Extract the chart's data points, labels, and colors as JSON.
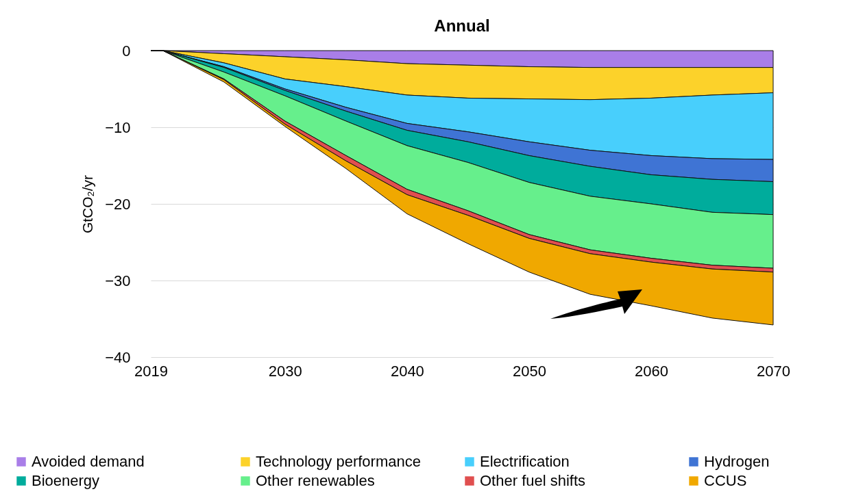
{
  "chart_data": {
    "type": "area",
    "title": "Annual",
    "ylabel": "GtCO₂/yr",
    "stacked": true,
    "x": [
      2019,
      2020,
      2025,
      2030,
      2035,
      2040,
      2045,
      2050,
      2055,
      2060,
      2065,
      2070
    ],
    "xlim": [
      2019,
      2070
    ],
    "xticks": [
      2019,
      2030,
      2040,
      2050,
      2060,
      2070
    ],
    "ylim": [
      -40,
      0
    ],
    "yticks": [
      -40,
      -30,
      -20,
      -10,
      0
    ],
    "grid": "y",
    "legend": "bottom",
    "series": [
      {
        "name": "Avoided demand",
        "color": "#a97ee8",
        "values": [
          0,
          0,
          -0.4,
          -0.8,
          -1.2,
          -1.7,
          -1.9,
          -2.1,
          -2.2,
          -2.2,
          -2.2,
          -2.2
        ]
      },
      {
        "name": "Technology performance",
        "color": "#fcd22a",
        "values": [
          0,
          0,
          -1.2,
          -2.9,
          -3.5,
          -4.1,
          -4.3,
          -4.2,
          -4.2,
          -4.0,
          -3.6,
          -3.3
        ]
      },
      {
        "name": "Electrification",
        "color": "#48cffc",
        "values": [
          0,
          0,
          -0.5,
          -1.3,
          -2.7,
          -3.7,
          -4.4,
          -5.6,
          -6.6,
          -7.5,
          -8.3,
          -8.7
        ]
      },
      {
        "name": "Hydrogen",
        "color": "#3f74d4",
        "values": [
          0,
          0,
          -0.1,
          -0.2,
          -0.5,
          -0.9,
          -1.3,
          -1.8,
          -2.1,
          -2.5,
          -2.7,
          -2.9
        ]
      },
      {
        "name": "Bioenergy",
        "color": "#00ac9c",
        "values": [
          0,
          0,
          -0.6,
          -0.7,
          -1.3,
          -2.0,
          -2.7,
          -3.5,
          -3.9,
          -3.8,
          -4.3,
          -4.3
        ]
      },
      {
        "name": "Other renewables",
        "color": "#66ef8c",
        "values": [
          0,
          0,
          -0.9,
          -3.3,
          -4.5,
          -5.7,
          -6.3,
          -6.8,
          -7.0,
          -7.1,
          -6.9,
          -7.0
        ]
      },
      {
        "name": "Other fuel shifts",
        "color": "#e04f4f",
        "values": [
          0,
          0,
          -0.1,
          -0.4,
          -0.7,
          -0.7,
          -0.6,
          -0.5,
          -0.5,
          -0.5,
          -0.5,
          -0.5
        ]
      },
      {
        "name": "CCUS",
        "color": "#f0a800",
        "values": [
          0,
          0,
          -0.3,
          -0.3,
          -1.0,
          -2.5,
          -3.7,
          -4.4,
          -5.3,
          -5.7,
          -6.4,
          -6.9
        ]
      }
    ]
  }
}
